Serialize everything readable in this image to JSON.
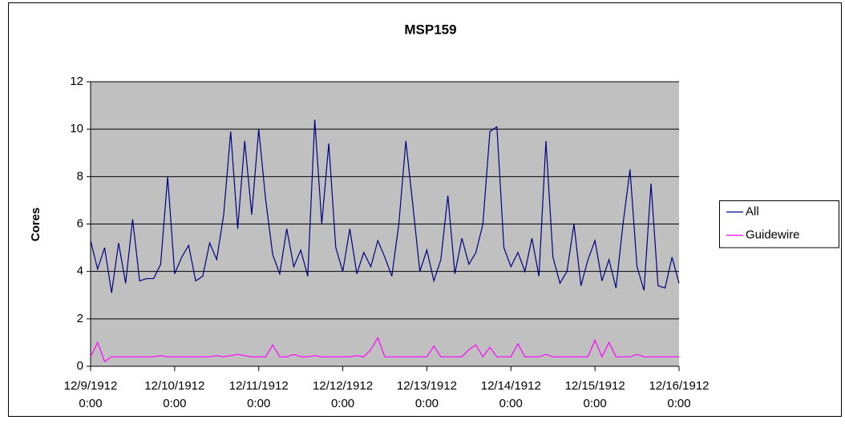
{
  "chart_data": {
    "type": "line",
    "title": "MSP159",
    "y_label": "Cores",
    "x": [
      "12/9/1912 0:00",
      "12/9/1912 2:00",
      "12/9/1912 4:00",
      "12/9/1912 6:00",
      "12/9/1912 8:00",
      "12/9/1912 10:00",
      "12/9/1912 12:00",
      "12/9/1912 14:00",
      "12/9/1912 16:00",
      "12/9/1912 18:00",
      "12/9/1912 20:00",
      "12/9/1912 22:00",
      "12/10/1912 0:00",
      "12/10/1912 2:00",
      "12/10/1912 4:00",
      "12/10/1912 6:00",
      "12/10/1912 8:00",
      "12/10/1912 10:00",
      "12/10/1912 12:00",
      "12/10/1912 14:00",
      "12/10/1912 16:00",
      "12/10/1912 18:00",
      "12/10/1912 20:00",
      "12/10/1912 22:00",
      "12/11/1912 0:00",
      "12/11/1912 2:00",
      "12/11/1912 4:00",
      "12/11/1912 6:00",
      "12/11/1912 8:00",
      "12/11/1912 10:00",
      "12/11/1912 12:00",
      "12/11/1912 14:00",
      "12/11/1912 16:00",
      "12/11/1912 18:00",
      "12/11/1912 20:00",
      "12/11/1912 22:00",
      "12/12/1912 0:00",
      "12/12/1912 2:00",
      "12/12/1912 4:00",
      "12/12/1912 6:00",
      "12/12/1912 8:00",
      "12/12/1912 10:00",
      "12/12/1912 12:00",
      "12/12/1912 14:00",
      "12/12/1912 16:00",
      "12/12/1912 18:00",
      "12/12/1912 20:00",
      "12/12/1912 22:00",
      "12/13/1912 0:00",
      "12/13/1912 2:00",
      "12/13/1912 4:00",
      "12/13/1912 6:00",
      "12/13/1912 8:00",
      "12/13/1912 10:00",
      "12/13/1912 12:00",
      "12/13/1912 14:00",
      "12/13/1912 16:00",
      "12/13/1912 18:00",
      "12/13/1912 20:00",
      "12/13/1912 22:00",
      "12/14/1912 0:00",
      "12/14/1912 2:00",
      "12/14/1912 4:00",
      "12/14/1912 6:00",
      "12/14/1912 8:00",
      "12/14/1912 10:00",
      "12/14/1912 12:00",
      "12/14/1912 14:00",
      "12/14/1912 16:00",
      "12/14/1912 18:00",
      "12/14/1912 20:00",
      "12/14/1912 22:00",
      "12/15/1912 0:00",
      "12/15/1912 2:00",
      "12/15/1912 4:00",
      "12/15/1912 6:00",
      "12/15/1912 8:00",
      "12/15/1912 10:00",
      "12/15/1912 12:00",
      "12/15/1912 14:00",
      "12/15/1912 16:00",
      "12/15/1912 18:00",
      "12/15/1912 20:00",
      "12/15/1912 22:00",
      "12/16/1912 0:00"
    ],
    "series": [
      {
        "name": "All",
        "color": "#000080",
        "values": [
          5.3,
          4.1,
          5.0,
          3.1,
          5.2,
          3.5,
          6.2,
          3.6,
          3.7,
          3.7,
          4.3,
          8.0,
          3.9,
          4.6,
          5.1,
          3.6,
          3.8,
          5.2,
          4.5,
          6.4,
          9.9,
          5.8,
          9.5,
          6.4,
          10.0,
          7.0,
          4.7,
          3.9,
          5.8,
          4.2,
          4.9,
          3.8,
          10.4,
          6.0,
          9.4,
          5.0,
          4.0,
          5.8,
          3.9,
          4.8,
          4.2,
          5.3,
          4.6,
          3.8,
          6.0,
          9.5,
          6.8,
          4.0,
          4.9,
          3.6,
          4.5,
          7.2,
          3.9,
          5.4,
          4.3,
          4.8,
          6.0,
          9.9,
          10.1,
          5.0,
          4.2,
          4.8,
          4.0,
          5.4,
          3.8,
          9.5,
          4.6,
          3.5,
          4.0,
          6.0,
          3.4,
          4.5,
          5.3,
          3.6,
          4.5,
          3.3,
          6.0,
          8.3,
          4.2,
          3.2,
          7.7,
          3.4,
          3.3,
          4.6,
          3.5
        ]
      },
      {
        "name": "Guidewire",
        "color": "#ff00ff",
        "values": [
          0.4,
          1.0,
          0.2,
          0.4,
          0.4,
          0.4,
          0.4,
          0.4,
          0.4,
          0.4,
          0.45,
          0.4,
          0.4,
          0.4,
          0.4,
          0.4,
          0.4,
          0.4,
          0.45,
          0.4,
          0.45,
          0.5,
          0.45,
          0.4,
          0.4,
          0.4,
          0.9,
          0.4,
          0.4,
          0.5,
          0.4,
          0.4,
          0.45,
          0.4,
          0.4,
          0.4,
          0.4,
          0.4,
          0.45,
          0.4,
          0.7,
          1.2,
          0.4,
          0.4,
          0.4,
          0.4,
          0.4,
          0.4,
          0.4,
          0.85,
          0.4,
          0.4,
          0.4,
          0.4,
          0.7,
          0.9,
          0.4,
          0.8,
          0.4,
          0.4,
          0.4,
          0.95,
          0.4,
          0.4,
          0.4,
          0.5,
          0.4,
          0.4,
          0.4,
          0.4,
          0.4,
          0.4,
          1.1,
          0.4,
          1.0,
          0.4,
          0.4,
          0.4,
          0.5,
          0.4,
          0.4,
          0.4,
          0.4,
          0.4,
          0.4
        ]
      }
    ],
    "xlim": [
      "12/9/1912 0:00",
      "12/16/1912 0:00"
    ],
    "xticks": [
      "12/9/1912 0:00",
      "12/10/1912 0:00",
      "12/11/1912 0:00",
      "12/12/1912 0:00",
      "12/13/1912 0:00",
      "12/14/1912 0:00",
      "12/15/1912 0:00",
      "12/16/1912 0:00"
    ],
    "ylim": [
      0,
      12
    ],
    "yticks": [
      0,
      2,
      4,
      6,
      8,
      10,
      12
    ],
    "grid": true,
    "legend": "right",
    "plot_background": "#c0c0c0"
  }
}
